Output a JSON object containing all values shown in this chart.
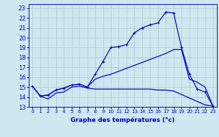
{
  "xlabel": "Graphe des températures (°c)",
  "xlim": [
    -0.5,
    23.5
  ],
  "ylim": [
    13,
    23.4
  ],
  "yticks": [
    13,
    14,
    15,
    16,
    17,
    18,
    19,
    20,
    21,
    22,
    23
  ],
  "xticks": [
    0,
    1,
    2,
    3,
    4,
    5,
    6,
    7,
    8,
    9,
    10,
    11,
    12,
    13,
    14,
    15,
    16,
    17,
    18,
    19,
    20,
    21,
    22,
    23
  ],
  "bg_color": "#cde8ee",
  "line_color": "#0000bb",
  "grid_color": "#b0cdd4",
  "line1_x": [
    0,
    1,
    2,
    3,
    4,
    5,
    6,
    7,
    8,
    9,
    10,
    11,
    12,
    13,
    14,
    15,
    16,
    17,
    18,
    22,
    23
  ],
  "line1_y": [
    15.1,
    14.1,
    13.8,
    14.4,
    14.5,
    15.0,
    15.1,
    14.9,
    14.8,
    14.8,
    14.8,
    14.8,
    14.8,
    14.8,
    14.8,
    14.8,
    14.7,
    14.7,
    14.6,
    13.2,
    13.1
  ],
  "line2_x": [
    0,
    1,
    2,
    3,
    4,
    5,
    6,
    7,
    8,
    9,
    10,
    11,
    12,
    13,
    14,
    15,
    16,
    17,
    18,
    19,
    20,
    21,
    22,
    23
  ],
  "line2_y": [
    15.1,
    14.1,
    14.2,
    14.7,
    14.9,
    15.2,
    15.3,
    15.0,
    16.3,
    17.6,
    19.0,
    19.1,
    19.3,
    20.5,
    21.0,
    21.3,
    21.5,
    22.6,
    22.5,
    19.0,
    16.3,
    14.8,
    14.5,
    13.1
  ],
  "line3_x": [
    0,
    1,
    2,
    3,
    4,
    5,
    6,
    7,
    8,
    9,
    10,
    11,
    12,
    13,
    14,
    15,
    16,
    17,
    18,
    19,
    20,
    21,
    22,
    23
  ],
  "line3_y": [
    15.1,
    14.1,
    14.2,
    14.7,
    14.9,
    15.2,
    15.3,
    15.0,
    15.8,
    16.1,
    16.3,
    16.6,
    16.9,
    17.2,
    17.5,
    17.8,
    18.1,
    18.4,
    18.8,
    18.8,
    15.8,
    15.5,
    15.0,
    13.1
  ],
  "ytick_fontsize": 6.0,
  "xtick_fontsize": 5.2,
  "xlabel_fontsize": 6.5
}
